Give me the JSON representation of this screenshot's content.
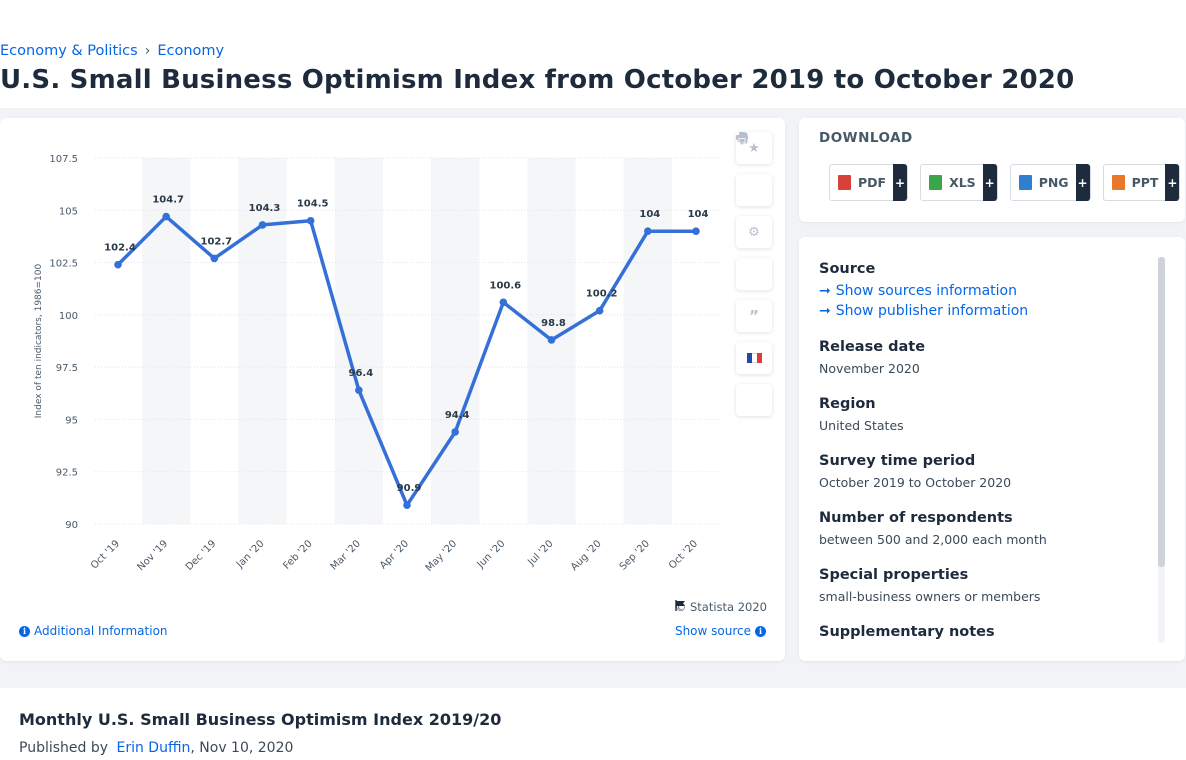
{
  "breadcrumb": {
    "items": [
      "Economy & Politics",
      "Economy"
    ],
    "separator": "›"
  },
  "page_title": "U.S. Small Business Optimism Index from October 2019 to October 2020",
  "chart_data": {
    "type": "line",
    "categories": [
      "Oct '19",
      "Nov '19",
      "Dec '19",
      "Jan '20",
      "Feb '20",
      "Mar '20",
      "Apr '20",
      "May '20",
      "Jun '20",
      "Jul '20",
      "Aug '20",
      "Sep '20",
      "Oct '20"
    ],
    "values": [
      102.4,
      104.7,
      102.7,
      104.3,
      104.5,
      96.4,
      90.9,
      94.4,
      100.6,
      98.8,
      100.2,
      104,
      104
    ],
    "data_labels": [
      "102.4",
      "104.7",
      "102.7",
      "104.3",
      "104.5",
      "96.4",
      "90.9",
      "94.4",
      "100.6",
      "98.8",
      "100.2",
      "104",
      "104"
    ],
    "ylabel": "Index of ten indicators, 1986=100",
    "ylim": [
      90,
      107.5
    ],
    "yticks": [
      90,
      92.5,
      95,
      97.5,
      100,
      102.5,
      105,
      107.5
    ],
    "ytick_labels": [
      "90",
      "92.5",
      "95",
      "97.5",
      "100",
      "102.5",
      "105",
      "107.5"
    ],
    "line_color": "#3470d8",
    "band_color": "#f5f6f7",
    "grid": true
  },
  "chart_tools": [
    "star-icon",
    "bell-icon",
    "gear-icon",
    "share-icon",
    "quote-icon",
    "french-flag-icon",
    "print-icon"
  ],
  "flag_colors": [
    "#1f4aa8",
    "#ffffff",
    "#e0393e"
  ],
  "copyright": "© Statista 2020",
  "additional_info": "Additional Information",
  "show_source": "Show source",
  "download": {
    "title": "DOWNLOAD",
    "buttons": [
      {
        "label": "PDF",
        "color": "#d8413a"
      },
      {
        "label": "XLS",
        "color": "#3aa54a"
      },
      {
        "label": "PNG",
        "color": "#2f7fd0"
      },
      {
        "label": "PPT",
        "color": "#e9782c"
      }
    ],
    "plus": "+"
  },
  "info": {
    "source_label": "Source",
    "show_sources": "Show sources information",
    "show_publisher": "Show publisher information",
    "release_label": "Release date",
    "release_value": "November 2020",
    "region_label": "Region",
    "region_value": "United States",
    "survey_label": "Survey time period",
    "survey_value": "October 2019 to October 2020",
    "respondents_label": "Number of respondents",
    "respondents_value": "between 500 and 2,000 each month",
    "special_label": "Special properties",
    "special_value": "small-business owners or members",
    "supp_label": "Supplementary notes"
  },
  "bottom": {
    "title": "Monthly U.S. Small Business Optimism Index 2019/20",
    "published_prefix": "Published by",
    "author": "Erin Duffin",
    "date": ", Nov 10, 2020"
  }
}
